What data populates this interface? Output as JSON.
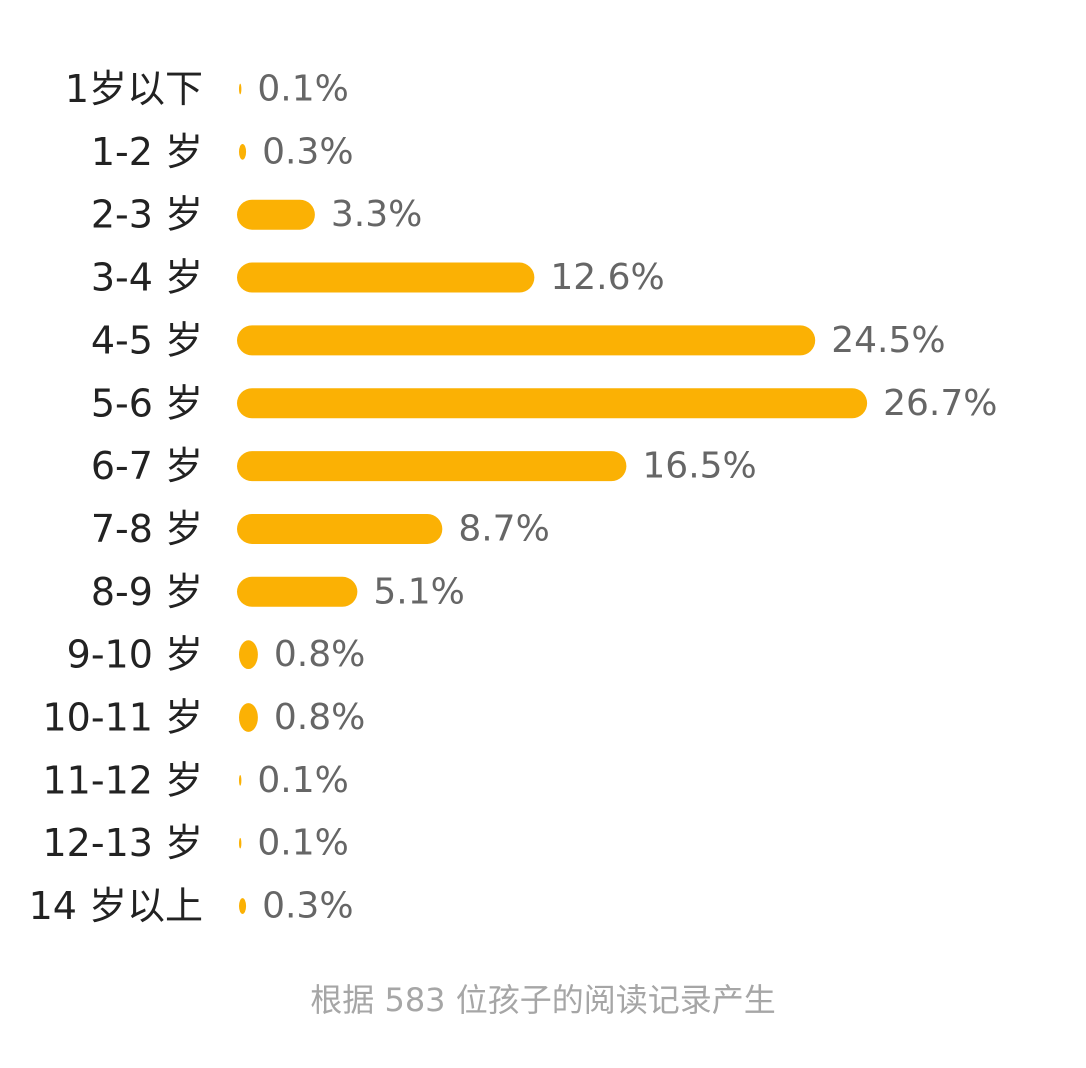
{
  "chart_data": {
    "type": "bar",
    "orientation": "horizontal",
    "categories": [
      "1岁以下",
      "1-2 岁",
      "2-3 岁",
      "3-4 岁",
      "4-5 岁",
      "5-6 岁",
      "6-7 岁",
      "7-8 岁",
      "8-9 岁",
      "9-10 岁",
      "10-11 岁",
      "11-12 岁",
      "12-13 岁",
      "14 岁以上"
    ],
    "values": [
      0.1,
      0.3,
      3.3,
      12.6,
      24.5,
      26.7,
      16.5,
      8.7,
      5.1,
      0.8,
      0.8,
      0.1,
      0.1,
      0.3
    ],
    "value_labels": [
      "0.1%",
      "0.3%",
      "3.3%",
      "12.6%",
      "24.5%",
      "26.7%",
      "16.5%",
      "8.7%",
      "5.1%",
      "0.8%",
      "0.8%",
      "0.1%",
      "0.1%",
      "0.3%"
    ],
    "unit": "%",
    "bar_color": "#fbb104",
    "label_color": "#222222",
    "value_color": "#666666",
    "grid": false,
    "legend": "none"
  },
  "footnote": "根据 583 位孩子的阅读记录产生"
}
